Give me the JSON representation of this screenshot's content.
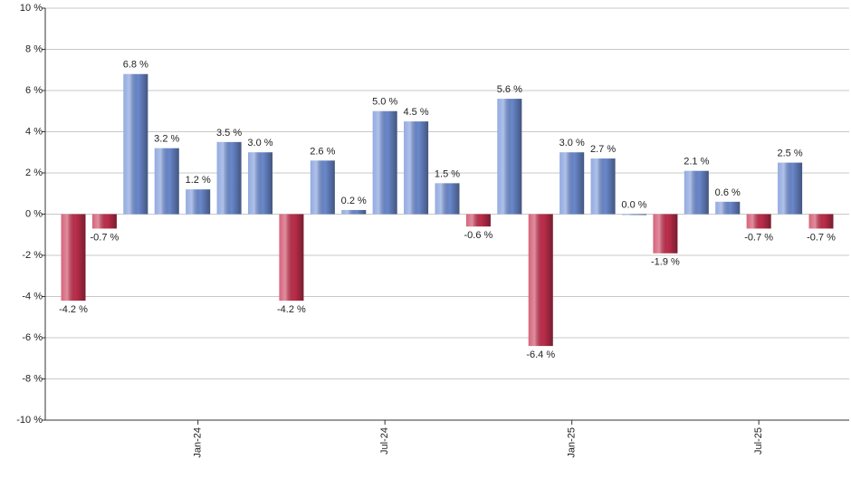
{
  "chart_data": {
    "type": "bar",
    "categories": [
      null,
      null,
      null,
      null,
      "Jan-24",
      null,
      null,
      null,
      null,
      null,
      "Jul-24",
      null,
      null,
      null,
      null,
      null,
      "Jan-25",
      null,
      null,
      null,
      null,
      null,
      "Jul-25",
      null,
      null
    ],
    "values": [
      -4.2,
      -0.7,
      6.8,
      3.2,
      1.2,
      3.5,
      3.0,
      -4.2,
      2.6,
      0.2,
      5.0,
      4.5,
      1.5,
      -0.6,
      5.6,
      -6.4,
      3.0,
      2.7,
      0.0,
      -1.9,
      2.1,
      0.6,
      -0.7,
      2.5,
      -0.7
    ],
    "value_labels": [
      "-4.2 %",
      "-0.7 %",
      "6.8 %",
      "3.2 %",
      "1.2 %",
      "3.5 %",
      "3.0 %",
      "-4.2 %",
      "2.6 %",
      "0.2 %",
      "5.0 %",
      "4.5 %",
      "1.5 %",
      "-0.6 %",
      "5.6 %",
      "-6.4 %",
      "3.0 %",
      "2.7 %",
      "0.0 %",
      "-1.9 %",
      "2.1 %",
      "0.6 %",
      "-0.7 %",
      "2.5 %",
      "-0.7 %"
    ],
    "color_positive": "#6f8fd6",
    "color_negative": "#c8304f",
    "ylim": [
      -10,
      10
    ],
    "yticks": [
      {
        "value": -10,
        "label": "-10 %"
      },
      {
        "value": -8,
        "label": "-8 %"
      },
      {
        "value": -6,
        "label": "-6 %"
      },
      {
        "value": -4,
        "label": "-4 %"
      },
      {
        "value": -2,
        "label": "-2 %"
      },
      {
        "value": 0,
        "label": "0 %"
      },
      {
        "value": 2,
        "label": "2 %"
      },
      {
        "value": 4,
        "label": "4 %"
      },
      {
        "value": 6,
        "label": "6 %"
      },
      {
        "value": 8,
        "label": "8 %"
      },
      {
        "value": 10,
        "label": "10 %"
      }
    ],
    "grid": true
  }
}
